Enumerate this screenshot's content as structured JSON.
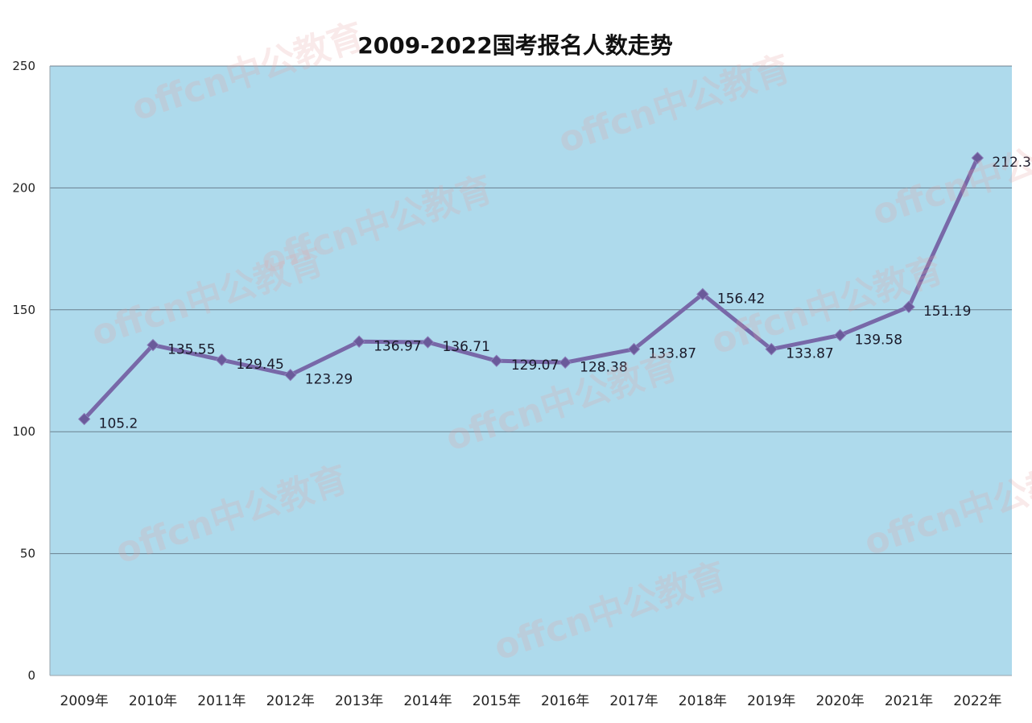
{
  "chart_data": {
    "type": "line",
    "title": "2009-2022国考报名人数走势",
    "categories": [
      "2009年",
      "2010年",
      "2011年",
      "2012年",
      "2013年",
      "2014年",
      "2015年",
      "2016年",
      "2017年",
      "2018年",
      "2019年",
      "2020年",
      "2021年",
      "2022年"
    ],
    "series": [
      {
        "values": [
          105.2,
          135.55,
          129.45,
          123.29,
          136.97,
          136.71,
          129.07,
          128.38,
          133.87,
          156.42,
          133.87,
          139.58,
          151.19,
          212.3
        ],
        "data_labels": [
          "105.2",
          "135.55",
          "129.45",
          "123.29",
          "136.97",
          "136.71",
          "129.07",
          "128.38",
          "133.87",
          "156.42",
          "133.87",
          "139.58",
          "151.19",
          "212.3"
        ]
      }
    ],
    "ylim": [
      0,
      250
    ],
    "yticks": [
      "0",
      "50",
      "100",
      "150",
      "200",
      "250"
    ],
    "grid": true,
    "legend": "none",
    "colors": {
      "plot_background": "#aedaec",
      "line": "#7868a8",
      "marker": "#6a5a9a",
      "gridline": "#5a6a78"
    }
  },
  "watermark": {
    "text": "offcn中公教育",
    "color": "#e7a3a3"
  }
}
